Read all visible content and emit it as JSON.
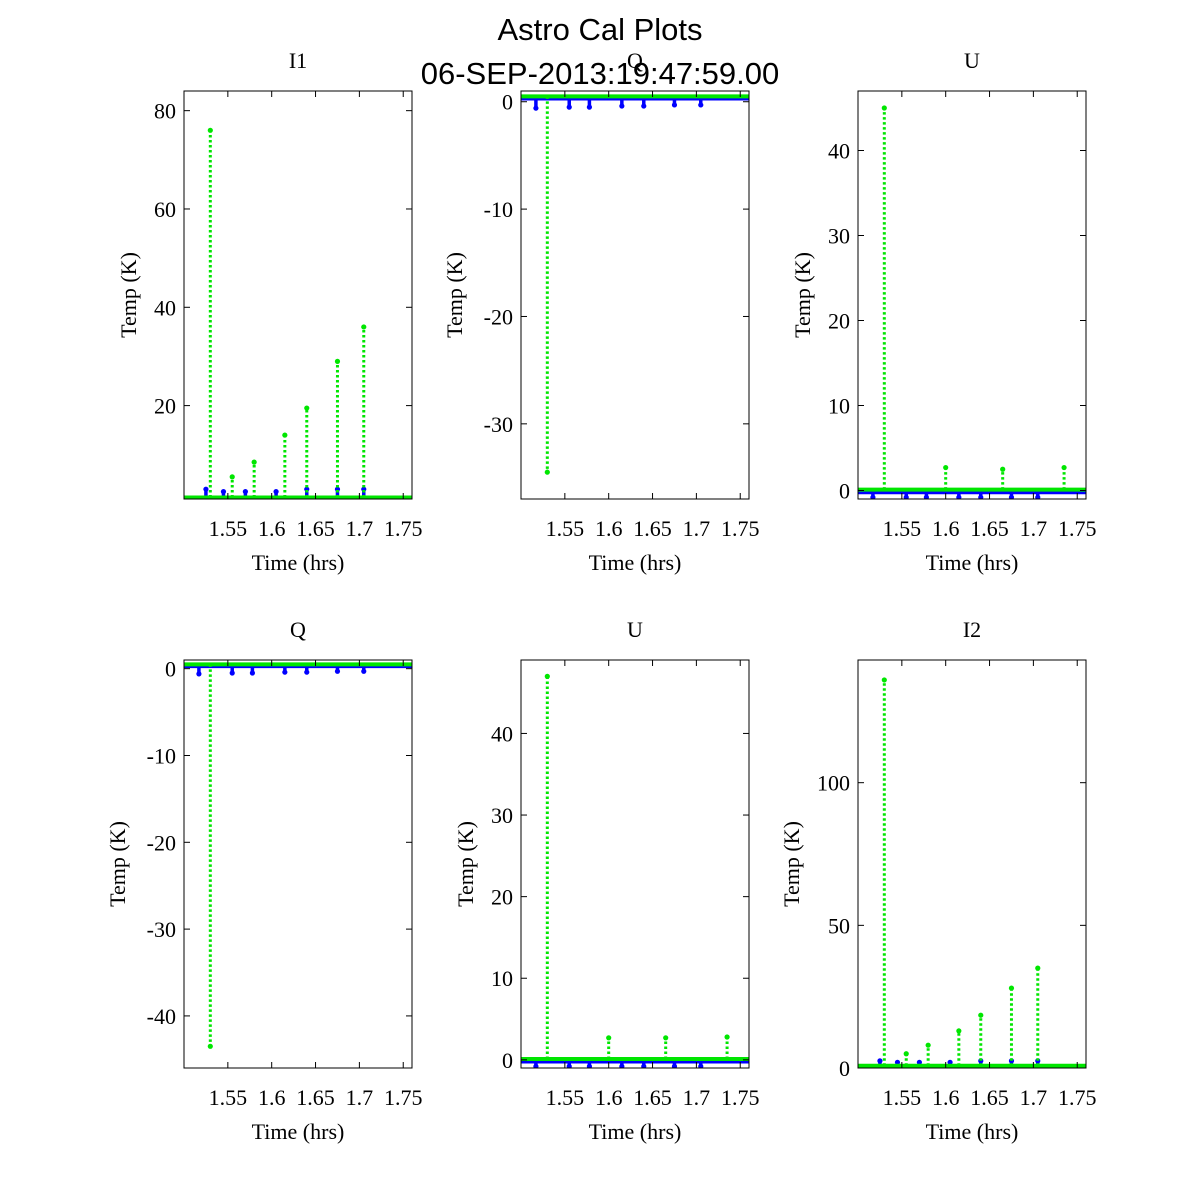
{
  "figure": {
    "title_line1": "Astro Cal Plots",
    "title_line2": "06-SEP-2013:19:47:59.00"
  },
  "colors": {
    "series_blue": "#0000ff",
    "series_green": "#00e600",
    "axis": "#000000",
    "background": "#ffffff"
  },
  "chart_data": [
    {
      "type": "scatter",
      "title": "I1",
      "xlabel": "Time (hrs)",
      "ylabel": "Temp (K)",
      "xlim": [
        1.5,
        1.76
      ],
      "ylim": [
        1,
        84
      ],
      "xticks": [
        1.55,
        1.6,
        1.65,
        1.7,
        1.75
      ],
      "yticks": [
        20,
        40,
        60,
        80
      ],
      "grid": false,
      "series": [
        {
          "color": "blue",
          "baseline": 1.1,
          "spikes": [
            {
              "x": 1.525,
              "top": 3
            },
            {
              "x": 1.545,
              "top": 2.5
            },
            {
              "x": 1.57,
              "top": 2.5
            },
            {
              "x": 1.605,
              "top": 2.5
            },
            {
              "x": 1.64,
              "top": 3
            },
            {
              "x": 1.675,
              "top": 3
            },
            {
              "x": 1.705,
              "top": 3
            }
          ]
        },
        {
          "color": "green",
          "baseline": 1.3,
          "spikes": [
            {
              "x": 1.53,
              "top": 76
            },
            {
              "x": 1.555,
              "top": 5.5
            },
            {
              "x": 1.58,
              "top": 8.5
            },
            {
              "x": 1.615,
              "top": 14
            },
            {
              "x": 1.64,
              "top": 19.5
            },
            {
              "x": 1.675,
              "top": 29
            },
            {
              "x": 1.705,
              "top": 36
            }
          ]
        }
      ]
    },
    {
      "type": "scatter",
      "title": "Q",
      "xlabel": "Time (hrs)",
      "ylabel": "Temp (K)",
      "xlim": [
        1.5,
        1.76
      ],
      "ylim": [
        -37,
        1
      ],
      "xticks": [
        1.55,
        1.6,
        1.65,
        1.7,
        1.75
      ],
      "yticks": [
        0,
        -10,
        -20,
        -30
      ],
      "grid": false,
      "series": [
        {
          "color": "blue",
          "baseline": 0.3,
          "spikes": [
            {
              "x": 1.517,
              "top": -0.6
            },
            {
              "x": 1.555,
              "top": -0.5
            },
            {
              "x": 1.578,
              "top": -0.5
            },
            {
              "x": 1.615,
              "top": -0.4
            },
            {
              "x": 1.64,
              "top": -0.4
            },
            {
              "x": 1.675,
              "top": -0.3
            },
            {
              "x": 1.705,
              "top": -0.3
            }
          ]
        },
        {
          "color": "green",
          "baseline": 0.5,
          "spikes": [
            {
              "x": 1.53,
              "top": -34.5
            }
          ]
        }
      ]
    },
    {
      "type": "scatter",
      "title": "U",
      "xlabel": "Time (hrs)",
      "ylabel": "Temp (K)",
      "xlim": [
        1.5,
        1.76
      ],
      "ylim": [
        -1,
        47
      ],
      "xticks": [
        1.55,
        1.6,
        1.65,
        1.7,
        1.75
      ],
      "yticks": [
        0,
        10,
        20,
        30,
        40
      ],
      "grid": false,
      "series": [
        {
          "color": "blue",
          "baseline": -0.2,
          "spikes": [
            {
              "x": 1.517,
              "top": -0.8
            },
            {
              "x": 1.555,
              "top": -0.8
            },
            {
              "x": 1.578,
              "top": -0.8
            },
            {
              "x": 1.615,
              "top": -0.8
            },
            {
              "x": 1.64,
              "top": -0.8
            },
            {
              "x": 1.675,
              "top": -0.8
            },
            {
              "x": 1.705,
              "top": -0.8
            }
          ]
        },
        {
          "color": "green",
          "baseline": 0.1,
          "spikes": [
            {
              "x": 1.53,
              "top": 45
            },
            {
              "x": 1.6,
              "top": 2.7
            },
            {
              "x": 1.665,
              "top": 2.5
            },
            {
              "x": 1.735,
              "top": 2.7
            }
          ]
        }
      ]
    },
    {
      "type": "scatter",
      "title": "Q",
      "xlabel": "Time (hrs)",
      "ylabel": "Temp (K)",
      "xlim": [
        1.5,
        1.76
      ],
      "ylim": [
        -46,
        1
      ],
      "xticks": [
        1.55,
        1.6,
        1.65,
        1.7,
        1.75
      ],
      "yticks": [
        0,
        -10,
        -20,
        -30,
        -40
      ],
      "grid": false,
      "series": [
        {
          "color": "blue",
          "baseline": 0.3,
          "spikes": [
            {
              "x": 1.517,
              "top": -0.6
            },
            {
              "x": 1.555,
              "top": -0.5
            },
            {
              "x": 1.578,
              "top": -0.5
            },
            {
              "x": 1.615,
              "top": -0.4
            },
            {
              "x": 1.64,
              "top": -0.4
            },
            {
              "x": 1.675,
              "top": -0.3
            },
            {
              "x": 1.705,
              "top": -0.3
            }
          ]
        },
        {
          "color": "green",
          "baseline": 0.5,
          "spikes": [
            {
              "x": 1.53,
              "top": -43.5
            }
          ]
        }
      ]
    },
    {
      "type": "scatter",
      "title": "U",
      "xlabel": "Time (hrs)",
      "ylabel": "Temp (K)",
      "xlim": [
        1.5,
        1.76
      ],
      "ylim": [
        -1,
        49
      ],
      "xticks": [
        1.55,
        1.6,
        1.65,
        1.7,
        1.75
      ],
      "yticks": [
        0,
        10,
        20,
        30,
        40
      ],
      "grid": false,
      "series": [
        {
          "color": "blue",
          "baseline": -0.2,
          "spikes": [
            {
              "x": 1.517,
              "top": -0.8
            },
            {
              "x": 1.555,
              "top": -0.8
            },
            {
              "x": 1.578,
              "top": -0.8
            },
            {
              "x": 1.615,
              "top": -0.8
            },
            {
              "x": 1.64,
              "top": -0.8
            },
            {
              "x": 1.675,
              "top": -0.8
            },
            {
              "x": 1.705,
              "top": -0.8
            }
          ]
        },
        {
          "color": "green",
          "baseline": 0.1,
          "spikes": [
            {
              "x": 1.53,
              "top": 47
            },
            {
              "x": 1.6,
              "top": 2.7
            },
            {
              "x": 1.665,
              "top": 2.7
            },
            {
              "x": 1.735,
              "top": 2.8
            }
          ]
        }
      ]
    },
    {
      "type": "scatter",
      "title": "I2",
      "xlabel": "Time (hrs)",
      "ylabel": "Temp (K)",
      "xlim": [
        1.5,
        1.76
      ],
      "ylim": [
        0,
        143
      ],
      "xticks": [
        1.55,
        1.6,
        1.65,
        1.7,
        1.75
      ],
      "yticks": [
        0,
        50,
        100
      ],
      "grid": false,
      "series": [
        {
          "color": "blue",
          "baseline": 0.5,
          "spikes": [
            {
              "x": 1.525,
              "top": 2.5
            },
            {
              "x": 1.545,
              "top": 2
            },
            {
              "x": 1.57,
              "top": 2
            },
            {
              "x": 1.605,
              "top": 2
            },
            {
              "x": 1.64,
              "top": 2.5
            },
            {
              "x": 1.675,
              "top": 2.5
            },
            {
              "x": 1.705,
              "top": 2.5
            }
          ]
        },
        {
          "color": "green",
          "baseline": 0.8,
          "spikes": [
            {
              "x": 1.53,
              "top": 136
            },
            {
              "x": 1.555,
              "top": 5
            },
            {
              "x": 1.58,
              "top": 8
            },
            {
              "x": 1.615,
              "top": 13
            },
            {
              "x": 1.64,
              "top": 18.5
            },
            {
              "x": 1.675,
              "top": 28
            },
            {
              "x": 1.705,
              "top": 35
            }
          ]
        }
      ]
    }
  ]
}
